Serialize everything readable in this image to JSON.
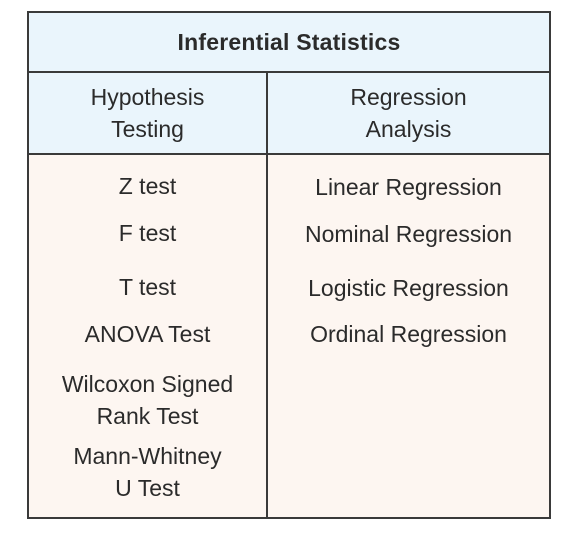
{
  "title": "Inferential Statistics",
  "columns": [
    {
      "header": "Hypothesis\nTesting",
      "items": [
        "Z test",
        "F test",
        "T test",
        "ANOVA Test",
        "Wilcoxon Signed\nRank Test",
        "Mann-Whitney\nU Test"
      ]
    },
    {
      "header": "Regression\nAnalysis",
      "items": [
        "Linear Regression",
        "Nominal Regression",
        "Logistic Regression",
        "Ordinal Regression"
      ]
    }
  ]
}
